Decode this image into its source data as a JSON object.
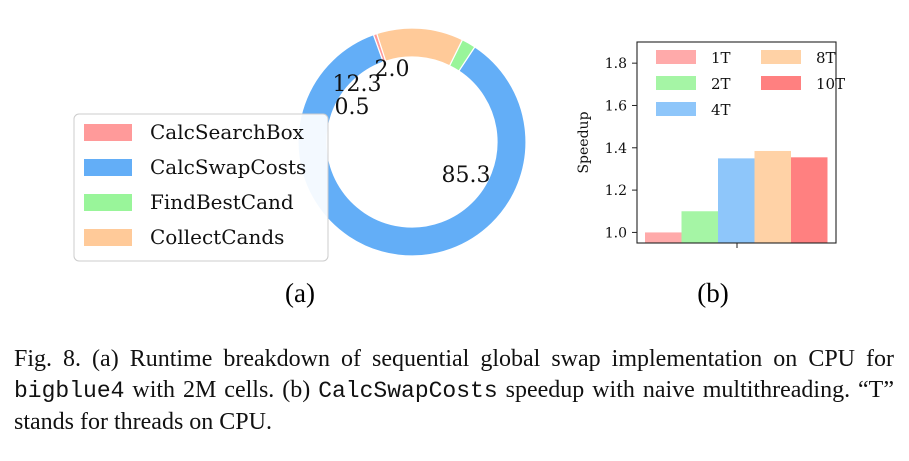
{
  "chart_data": [
    {
      "type": "pie",
      "panel_label": "(a)",
      "donut": true,
      "labels": [
        "CalcSearchBox",
        "CalcSwapCosts",
        "FindBestCand",
        "CollectCands"
      ],
      "values": [
        0.5,
        85.3,
        2.0,
        12.3
      ],
      "value_labels": [
        "0.5",
        "85.3",
        "2.0",
        "12.3"
      ],
      "colors": [
        "#ff9a9a",
        "#63aef7",
        "#99f59a",
        "#ffca99"
      ],
      "legend_position": "left"
    },
    {
      "type": "bar",
      "panel_label": "(b)",
      "ylabel": "Speedup",
      "ylim": [
        0.95,
        1.9
      ],
      "yticks": [
        "1.0",
        "1.2",
        "1.4",
        "1.6",
        "1.8"
      ],
      "series": [
        {
          "name": "1T",
          "values": [
            1.0
          ]
        },
        {
          "name": "2T",
          "values": [
            1.1
          ]
        },
        {
          "name": "4T",
          "values": [
            1.35
          ]
        },
        {
          "name": "8T",
          "values": [
            1.385
          ]
        },
        {
          "name": "10T",
          "values": [
            1.355
          ]
        }
      ],
      "colors": [
        "#ffaaaa",
        "#a5f5a5",
        "#8ec6fa",
        "#ffd2a6",
        "#ff8080"
      ],
      "legend_position": "top"
    }
  ],
  "caption": {
    "fig": "Fig. 8.",
    "part1": " (a) Runtime breakdown of sequential global swap implementation on CPU for ",
    "mono1": "bigblue4",
    "part2": " with 2M cells. (b) ",
    "mono2": "CalcSwapCosts",
    "part3": " speedup with naive multithreading. “T” stands for threads on CPU."
  }
}
